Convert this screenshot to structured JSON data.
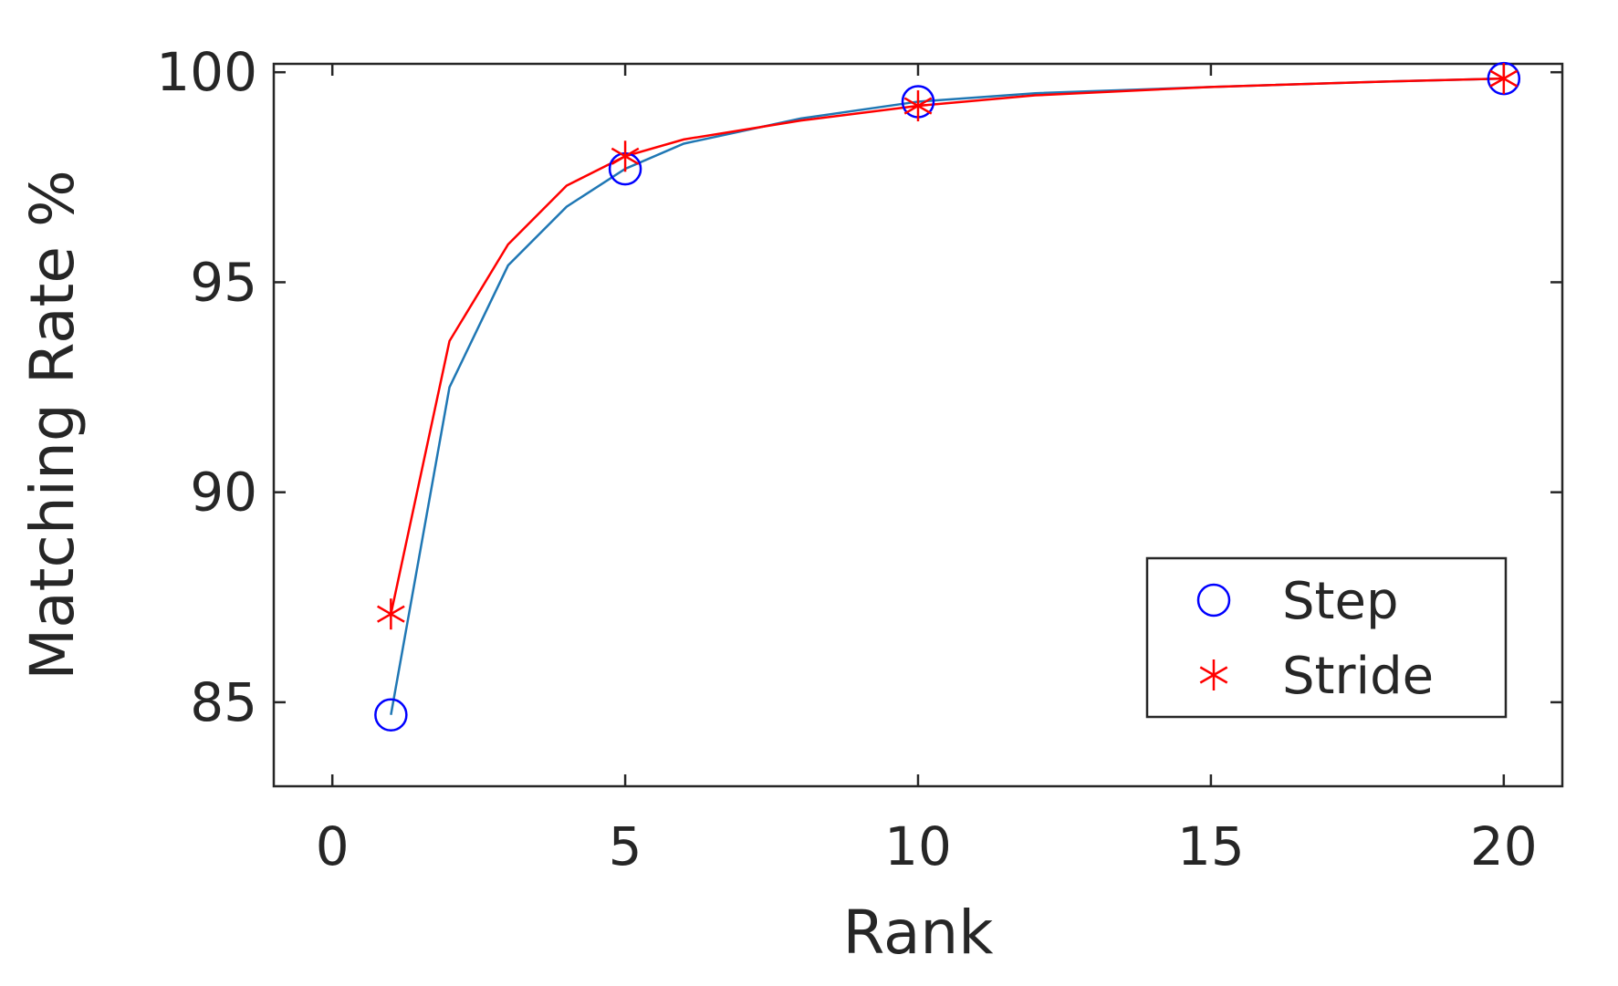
{
  "chart_data": {
    "type": "line",
    "title": "",
    "xlabel": "Rank",
    "ylabel": "Matching Rate %",
    "xlim": [
      -1,
      21
    ],
    "ylim": [
      83,
      100.2
    ],
    "xticks": [
      0,
      5,
      10,
      15,
      20
    ],
    "yticks": [
      85,
      90,
      95,
      100
    ],
    "x": [
      1,
      2,
      3,
      4,
      5,
      6,
      8,
      10,
      12,
      15,
      18,
      20
    ],
    "legend_position": "bottom-right",
    "grid": false,
    "series": [
      {
        "name": "Step",
        "color": "#0000ff",
        "line_color": "#1f77b4",
        "marker": "circle",
        "values": [
          84.7,
          92.5,
          95.4,
          96.8,
          97.7,
          98.3,
          98.9,
          99.3,
          99.5,
          99.65,
          99.78,
          99.85
        ],
        "marker_x": [
          1,
          5,
          10,
          20
        ],
        "marker_values": [
          84.7,
          97.7,
          99.3,
          99.85
        ]
      },
      {
        "name": "Stride",
        "color": "#ff0000",
        "line_color": "#ff0000",
        "marker": "asterisk",
        "values": [
          87.1,
          93.6,
          95.9,
          97.3,
          98.0,
          98.4,
          98.85,
          99.2,
          99.45,
          99.65,
          99.78,
          99.85
        ],
        "marker_x": [
          1,
          5,
          10,
          20
        ],
        "marker_values": [
          87.1,
          98.0,
          99.2,
          99.85
        ]
      }
    ]
  }
}
